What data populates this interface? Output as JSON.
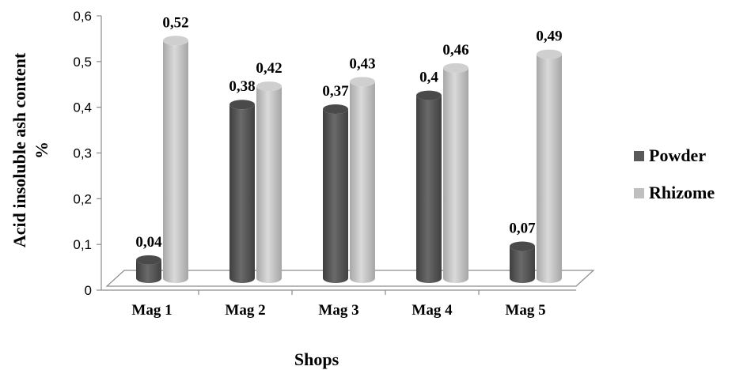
{
  "chart_data": {
    "type": "bar",
    "categories": [
      "Mag 1",
      "Mag 2",
      "Mag 3",
      "Mag 4",
      "Mag 5"
    ],
    "series": [
      {
        "name": "Powder",
        "values": [
          0.04,
          0.38,
          0.37,
          0.4,
          0.07
        ],
        "labels": [
          "0,04",
          "0,38",
          "0,37",
          "0,4",
          "0,07"
        ],
        "color": "#595959"
      },
      {
        "name": "Rhizome",
        "values": [
          0.52,
          0.42,
          0.43,
          0.46,
          0.49
        ],
        "labels": [
          "0,52",
          "0,42",
          "0,43",
          "0,46",
          "0,49"
        ],
        "color": "#bfbfbf"
      }
    ],
    "yticks": [
      0,
      0.1,
      0.2,
      0.3,
      0.4,
      0.5,
      0.6
    ],
    "ytick_labels": [
      "0",
      "0,1",
      "0,2",
      "0,3",
      "0,4",
      "0,5",
      "0,6"
    ],
    "ylim": [
      0,
      0.6
    ],
    "xlabel": "Shops",
    "ylabel": [
      "Acid insoluble ash content",
      "%"
    ],
    "legend_position": "right",
    "style": "3d-cylinder",
    "grid": false
  }
}
